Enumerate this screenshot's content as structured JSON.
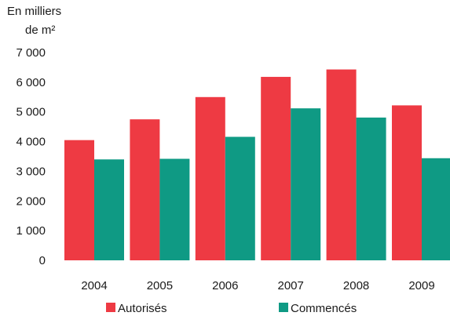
{
  "chart_data": {
    "type": "bar",
    "unit_label_lines": [
      "En milliers",
      "de m²"
    ],
    "categories": [
      "2004",
      "2005",
      "2006",
      "2007",
      "2008",
      "2009"
    ],
    "series": [
      {
        "name": "Autorisés",
        "color": "#ee3a43",
        "values": [
          4050,
          4750,
          5500,
          6180,
          6430,
          5220
        ]
      },
      {
        "name": "Commencés",
        "color": "#0f9a84",
        "values": [
          3400,
          3420,
          4160,
          5120,
          4810,
          3440
        ]
      }
    ],
    "yticks": [
      {
        "value": 0,
        "label": "0"
      },
      {
        "value": 1000,
        "label": "1 000"
      },
      {
        "value": 2000,
        "label": "2 000"
      },
      {
        "value": 3000,
        "label": "3 000"
      },
      {
        "value": 4000,
        "label": "4 000"
      },
      {
        "value": 5000,
        "label": "5 000"
      },
      {
        "value": 6000,
        "label": "6 000"
      },
      {
        "value": 7000,
        "label": "7 000"
      }
    ],
    "ylim": [
      0,
      7000
    ],
    "grid": false,
    "legend_position": "bottom"
  }
}
